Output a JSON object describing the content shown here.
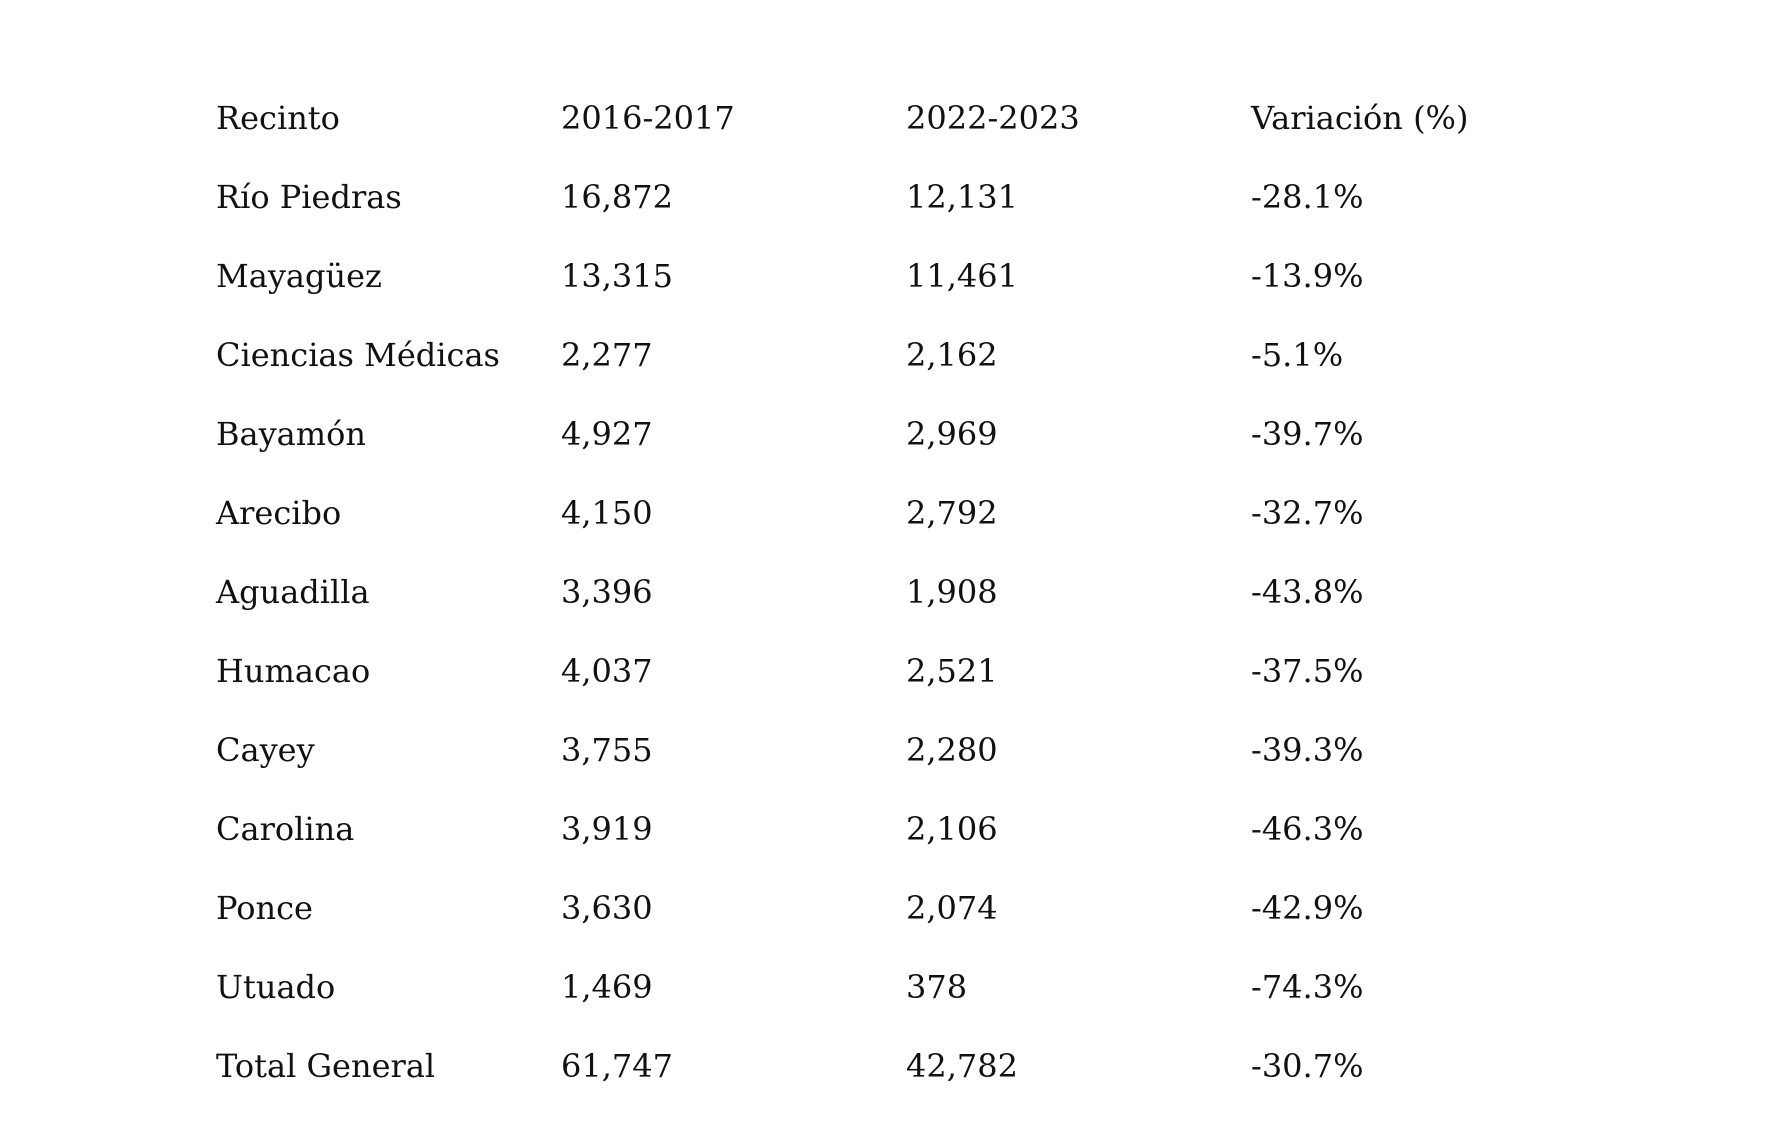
{
  "table": {
    "headers": [
      "Recinto",
      "2016-2017",
      "2022-2023",
      "Variación (%)"
    ],
    "rows": [
      [
        "Río Piedras",
        "16,872",
        "12,131",
        "-28.1%"
      ],
      [
        "Mayagüez",
        "13,315",
        "11,461",
        "-13.9%"
      ],
      [
        "Ciencias Médicas",
        "2,277",
        "2,162",
        "-5.1%"
      ],
      [
        "Bayamón",
        "4,927",
        "2,969",
        "-39.7%"
      ],
      [
        "Arecibo",
        "4,150",
        "2,792",
        "-32.7%"
      ],
      [
        "Aguadilla",
        "3,396",
        "1,908",
        "-43.8%"
      ],
      [
        "Humacao",
        "4,037",
        "2,521",
        "-37.5%"
      ],
      [
        "Cayey",
        "3,755",
        "2,280",
        "-39.3%"
      ],
      [
        "Carolina",
        "3,919",
        "2,106",
        "-46.3%"
      ],
      [
        "Ponce",
        "3,630",
        "2,074",
        "-42.9%"
      ],
      [
        "Utuado",
        "1,469",
        "378",
        "-74.3%"
      ],
      [
        "Total General",
        "61,747",
        "42,782",
        "-30.7%"
      ]
    ]
  }
}
